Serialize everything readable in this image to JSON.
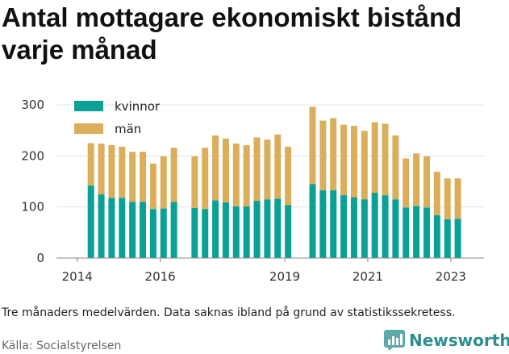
{
  "title": "Antal mottagare ekonomiskt bistånd varje månad",
  "note": "Tre månaders medelvärden. Data saknas ibland på grund av statistikssekretess.",
  "source": "Källa: Socialstyrelsen",
  "brand": {
    "name": "Newsworthy",
    "icon": "newsworthy-logo-icon"
  },
  "colors": {
    "kvinnor": "#0aa096",
    "man": "#dbae5b",
    "grid": "#e3e3e3",
    "axis": "#888888"
  },
  "chart_data": {
    "type": "bar",
    "stacked": true,
    "title": "Antal mottagare ekonomiskt bistånd varje månad",
    "xlabel": "",
    "ylabel": "",
    "ylim": [
      0,
      300
    ],
    "yticks": [
      0,
      100,
      200,
      300
    ],
    "xticks": [
      2014,
      2016,
      2019,
      2021,
      2023
    ],
    "xlim": [
      2013.5,
      2023.8
    ],
    "grid": true,
    "legend": "top-left",
    "x": [
      2014.33,
      2014.58,
      2014.83,
      2015.08,
      2015.33,
      2015.58,
      2015.83,
      2016.08,
      2016.33,
      2016.83,
      2017.08,
      2017.33,
      2017.58,
      2017.83,
      2018.08,
      2018.33,
      2018.58,
      2018.83,
      2019.08,
      2019.67,
      2019.92,
      2020.17,
      2020.42,
      2020.67,
      2020.92,
      2021.17,
      2021.42,
      2021.67,
      2021.92,
      2022.17,
      2022.42,
      2022.67,
      2022.92,
      2023.17
    ],
    "series": [
      {
        "name": "kvinnor",
        "values": [
          142,
          125,
          118,
          118,
          110,
          110,
          96,
          97,
          110,
          98,
          96,
          113,
          109,
          101,
          101,
          112,
          115,
          116,
          104,
          145,
          133,
          133,
          123,
          119,
          115,
          128,
          123,
          115,
          99,
          102,
          99,
          84,
          76,
          77
        ]
      },
      {
        "name": "män",
        "values": [
          83,
          99,
          103,
          100,
          98,
          98,
          89,
          102,
          106,
          101,
          120,
          127,
          125,
          123,
          120,
          124,
          117,
          126,
          114,
          151,
          136,
          141,
          138,
          140,
          134,
          138,
          140,
          125,
          96,
          103,
          100,
          85,
          80,
          79
        ]
      }
    ]
  }
}
